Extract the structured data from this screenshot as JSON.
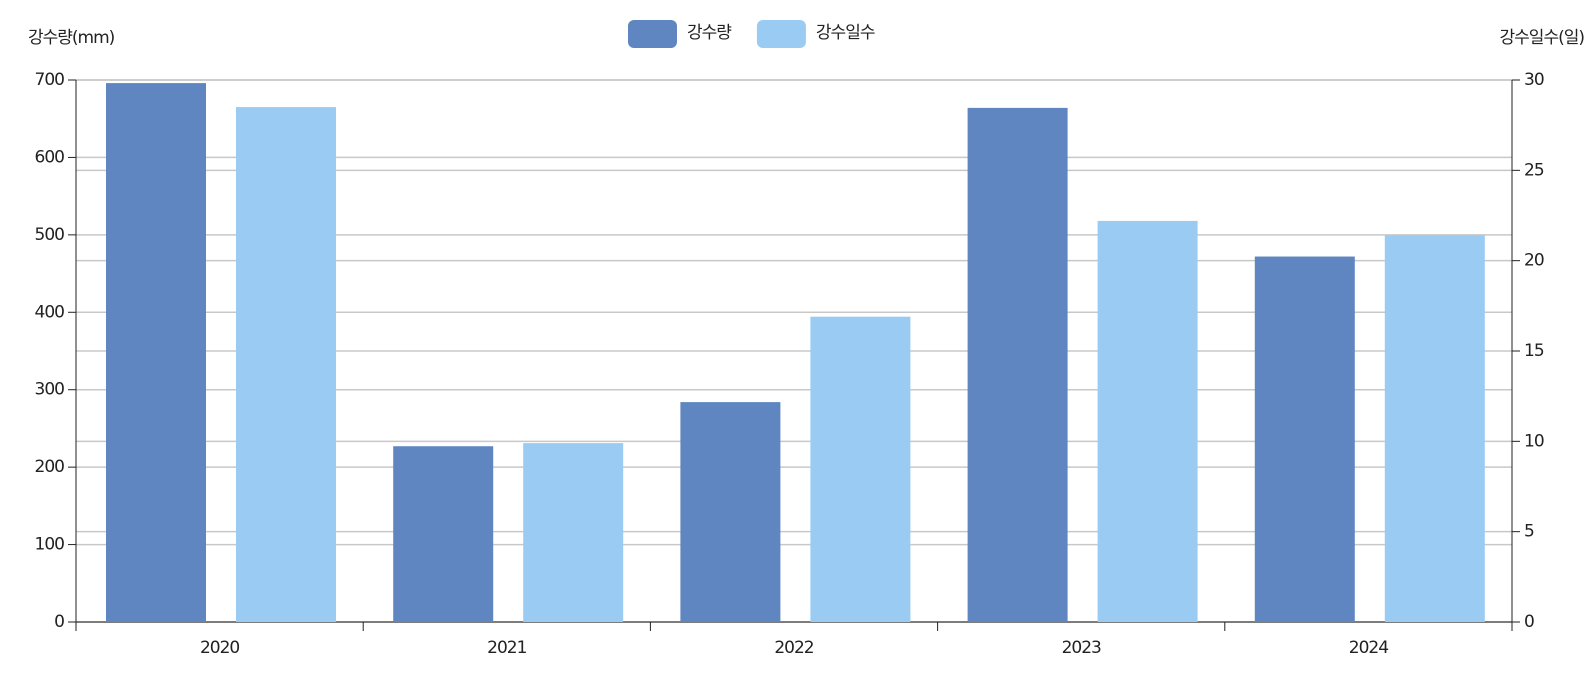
{
  "chart_data": {
    "type": "bar",
    "y_label": "강수량(mm)",
    "y2_label": "강수일수(일)",
    "categories": [
      "2020",
      "2021",
      "2022",
      "2023",
      "2024"
    ],
    "series": [
      {
        "name": "강수량",
        "color": "#5f86c1",
        "values": [
          696,
          227,
          284,
          664,
          472
        ]
      },
      {
        "name": "강수일수",
        "color": "#9acbf3",
        "axis": "y2",
        "values": [
          28.5,
          9.9,
          16.9,
          22.2,
          21.4
        ]
      }
    ],
    "ylim": [
      0,
      700
    ],
    "yticks": [
      0,
      100,
      200,
      300,
      400,
      500,
      600,
      700
    ],
    "y2lim": [
      0,
      30
    ],
    "y2ticks": [
      0,
      5,
      10,
      15,
      20,
      25,
      30
    ],
    "grid": true
  }
}
